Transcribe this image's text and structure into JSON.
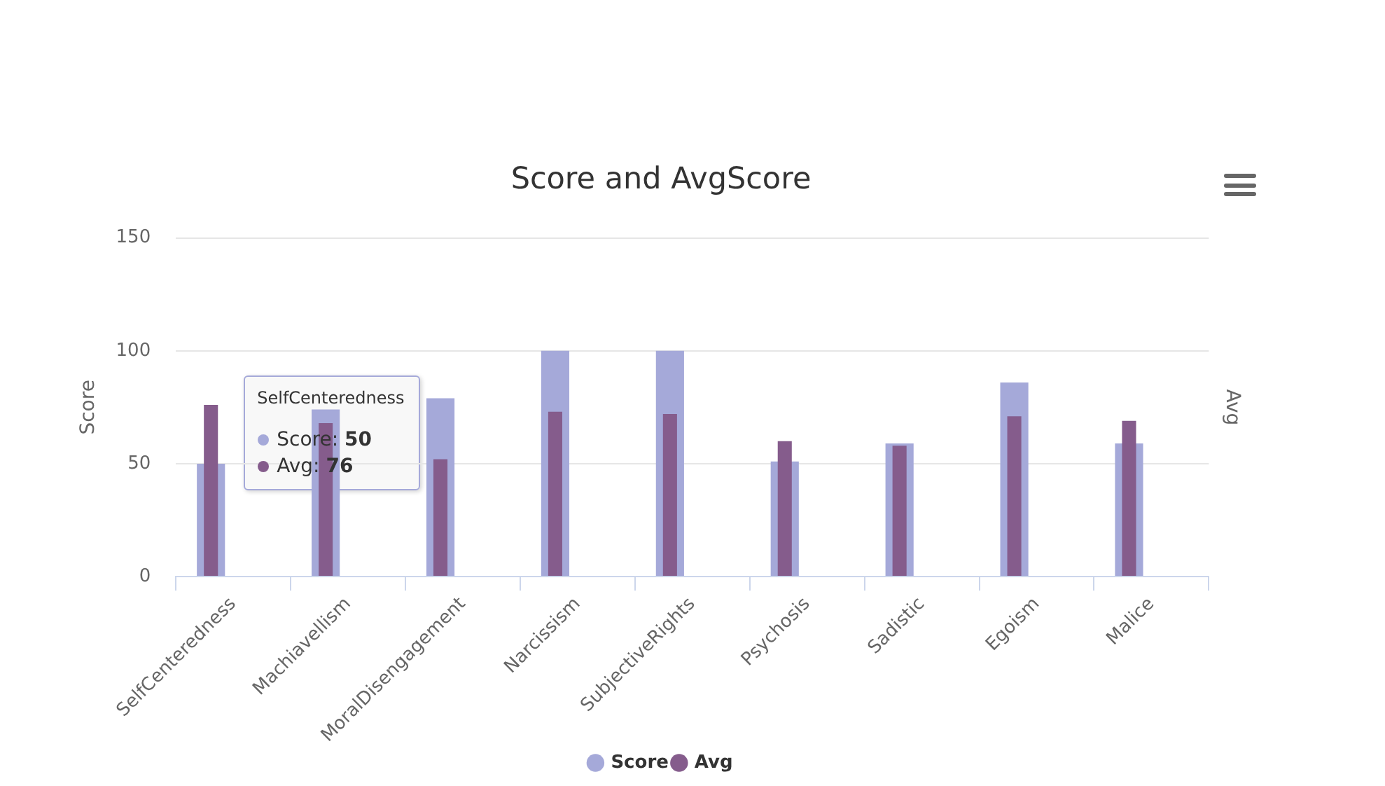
{
  "chart_data": {
    "type": "bar",
    "title": "Score and AvgScore",
    "ylabel": "Score",
    "y2label": "Avg",
    "categories": [
      "SelfCenteredness",
      "Machiavellism",
      "MoralDisengagement",
      "Narcissism",
      "SubjectiveRights",
      "Psychosis",
      "Sadistic",
      "Egoism",
      "Malice"
    ],
    "series": [
      {
        "name": "Score",
        "color": "#a5a9d9",
        "values": [
          50,
          74,
          79,
          100,
          100,
          51,
          59,
          86,
          59
        ]
      },
      {
        "name": "Avg",
        "color": "#855c8c",
        "values": [
          76,
          68,
          52,
          73,
          72,
          60,
          58,
          71,
          69
        ]
      }
    ],
    "ylim": [
      0,
      150
    ],
    "yticks": [
      0,
      50,
      100,
      150
    ],
    "grid": "y",
    "legend": "bottom",
    "annotations": [
      "SelfCenteredness",
      "Score: 50",
      "Avg: 76"
    ]
  }
}
